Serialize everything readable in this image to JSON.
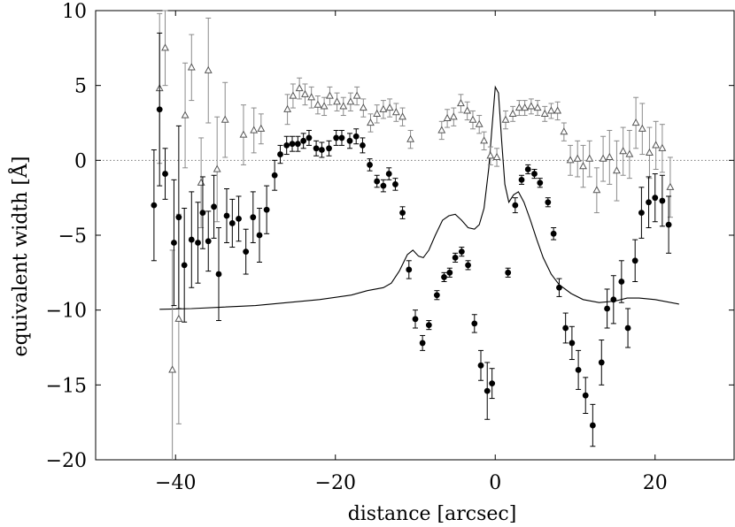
{
  "chart_data": {
    "type": "scatter",
    "title": "",
    "xlabel": "distance [arcsec]",
    "ylabel": "equivalent width [Å]",
    "xlim": [
      -50,
      30
    ],
    "ylim": [
      -20,
      10
    ],
    "xticks": [
      -40,
      -20,
      0,
      20
    ],
    "yticks": [
      -20,
      -15,
      -10,
      -5,
      0,
      5,
      10
    ],
    "xtick_labels": [
      "−40",
      "−20",
      "0",
      "20"
    ],
    "ytick_labels": [
      "−20",
      "−15",
      "−10",
      "−5",
      "0",
      "5",
      "10"
    ],
    "grid": false,
    "legend": "none",
    "reference_line": {
      "y": 0,
      "style": "dotted",
      "color": "#777777"
    },
    "series": [
      {
        "marker": "filled-circle",
        "color": "#000000",
        "points": [
          {
            "x": -42.7,
            "y": -3.0,
            "err": 3.7
          },
          {
            "x": -42.0,
            "y": 3.4,
            "err": 5.1
          },
          {
            "x": -41.3,
            "y": -0.9,
            "err": 1.7
          },
          {
            "x": -40.2,
            "y": -5.5,
            "err": 4.2
          },
          {
            "x": -39.6,
            "y": -3.8,
            "err": 6.1
          },
          {
            "x": -38.9,
            "y": -7.0,
            "err": 3.8
          },
          {
            "x": -38.0,
            "y": -5.3,
            "err": 3.2
          },
          {
            "x": -37.2,
            "y": -5.5,
            "err": 2.7
          },
          {
            "x": -36.6,
            "y": -3.5,
            "err": 2.4
          },
          {
            "x": -35.9,
            "y": -5.4,
            "err": 2.0
          },
          {
            "x": -35.2,
            "y": -3.1,
            "err": 2.1
          },
          {
            "x": -34.6,
            "y": -7.6,
            "err": 3.1
          },
          {
            "x": -33.6,
            "y": -3.7,
            "err": 1.8
          },
          {
            "x": -32.9,
            "y": -4.2,
            "err": 1.6
          },
          {
            "x": -32.1,
            "y": -3.9,
            "err": 1.5
          },
          {
            "x": -31.2,
            "y": -6.1,
            "err": 1.5
          },
          {
            "x": -30.3,
            "y": -3.8,
            "err": 1.7
          },
          {
            "x": -29.5,
            "y": -5.0,
            "err": 1.8
          },
          {
            "x": -28.6,
            "y": -3.3,
            "err": 1.6
          },
          {
            "x": -27.6,
            "y": -1.0,
            "err": 1.0
          },
          {
            "x": -26.9,
            "y": 0.4,
            "err": 0.6
          },
          {
            "x": -26.1,
            "y": 1.0,
            "err": 0.6
          },
          {
            "x": -25.4,
            "y": 1.1,
            "err": 0.5
          },
          {
            "x": -24.7,
            "y": 1.1,
            "err": 0.5
          },
          {
            "x": -24.0,
            "y": 1.3,
            "err": 0.5
          },
          {
            "x": -23.3,
            "y": 1.5,
            "err": 0.5
          },
          {
            "x": -22.4,
            "y": 0.8,
            "err": 0.5
          },
          {
            "x": -21.7,
            "y": 0.7,
            "err": 0.5
          },
          {
            "x": -20.8,
            "y": 0.8,
            "err": 0.5
          },
          {
            "x": -19.9,
            "y": 1.5,
            "err": 0.5
          },
          {
            "x": -19.2,
            "y": 1.5,
            "err": 0.5
          },
          {
            "x": -18.2,
            "y": 1.3,
            "err": 0.5
          },
          {
            "x": -17.4,
            "y": 1.6,
            "err": 0.5
          },
          {
            "x": -16.6,
            "y": 1.0,
            "err": 0.5
          },
          {
            "x": -15.7,
            "y": -0.3,
            "err": 0.4
          },
          {
            "x": -14.8,
            "y": -1.4,
            "err": 0.4
          },
          {
            "x": -14.0,
            "y": -1.7,
            "err": 0.4
          },
          {
            "x": -13.3,
            "y": -0.9,
            "err": 0.4
          },
          {
            "x": -12.5,
            "y": -1.6,
            "err": 0.4
          },
          {
            "x": -11.6,
            "y": -3.5,
            "err": 0.4
          },
          {
            "x": -10.8,
            "y": -7.3,
            "err": 0.6
          },
          {
            "x": -10.0,
            "y": -10.6,
            "err": 0.6
          },
          {
            "x": -9.1,
            "y": -12.2,
            "err": 0.5
          },
          {
            "x": -8.3,
            "y": -11.0,
            "err": 0.3
          },
          {
            "x": -7.3,
            "y": -9.0,
            "err": 0.3
          },
          {
            "x": -6.4,
            "y": -7.8,
            "err": 0.3
          },
          {
            "x": -5.7,
            "y": -7.5,
            "err": 0.3
          },
          {
            "x": -5.0,
            "y": -6.5,
            "err": 0.3
          },
          {
            "x": -4.2,
            "y": -6.1,
            "err": 0.3
          },
          {
            "x": -3.4,
            "y": -7.0,
            "err": 0.3
          },
          {
            "x": -2.6,
            "y": -10.9,
            "err": 0.6
          },
          {
            "x": -1.8,
            "y": -13.7,
            "err": 1.0
          },
          {
            "x": -1.0,
            "y": -15.4,
            "err": 1.9
          },
          {
            "x": -0.4,
            "y": -14.9,
            "err": 1.0
          },
          {
            "x": 1.6,
            "y": -7.5,
            "err": 0.3
          },
          {
            "x": 2.5,
            "y": -3.0,
            "err": 0.5
          },
          {
            "x": 3.3,
            "y": -1.3,
            "err": 0.3
          },
          {
            "x": 4.1,
            "y": -0.6,
            "err": 0.3
          },
          {
            "x": 4.9,
            "y": -0.9,
            "err": 0.3
          },
          {
            "x": 5.6,
            "y": -1.5,
            "err": 0.3
          },
          {
            "x": 6.6,
            "y": -2.8,
            "err": 0.3
          },
          {
            "x": 7.3,
            "y": -4.9,
            "err": 0.4
          },
          {
            "x": 8.0,
            "y": -8.5,
            "err": 0.6
          },
          {
            "x": 8.8,
            "y": -11.2,
            "err": 1.0
          },
          {
            "x": 9.6,
            "y": -12.2,
            "err": 1.1
          },
          {
            "x": 10.4,
            "y": -14.0,
            "err": 1.3
          },
          {
            "x": 11.3,
            "y": -15.7,
            "err": 1.2
          },
          {
            "x": 12.2,
            "y": -17.7,
            "err": 1.4
          },
          {
            "x": 13.3,
            "y": -13.5,
            "err": 1.5
          },
          {
            "x": 14.0,
            "y": -9.9,
            "err": 1.3
          },
          {
            "x": 14.8,
            "y": -9.3,
            "err": 1.6
          },
          {
            "x": 15.8,
            "y": -8.1,
            "err": 1.4
          },
          {
            "x": 16.6,
            "y": -11.2,
            "err": 1.3
          },
          {
            "x": 17.5,
            "y": -6.7,
            "err": 1.4
          },
          {
            "x": 18.3,
            "y": -3.5,
            "err": 1.7
          },
          {
            "x": 19.2,
            "y": -2.8,
            "err": 1.7
          },
          {
            "x": 20.0,
            "y": -2.5,
            "err": 1.6
          },
          {
            "x": 20.9,
            "y": -2.7,
            "err": 1.7
          },
          {
            "x": 21.7,
            "y": -4.3,
            "err": 1.9
          }
        ]
      },
      {
        "marker": "open-triangle",
        "color": "#555555",
        "points": [
          {
            "x": -42.0,
            "y": 4.8,
            "err": 5.0
          },
          {
            "x": -41.3,
            "y": 7.5,
            "err": 2.5
          },
          {
            "x": -40.4,
            "y": -14.0,
            "err": 8.0
          },
          {
            "x": -39.6,
            "y": -10.6,
            "err": 7.0
          },
          {
            "x": -38.8,
            "y": 3.0,
            "err": 3.5
          },
          {
            "x": -38.0,
            "y": 6.2,
            "err": 2.2
          },
          {
            "x": -36.8,
            "y": -1.5,
            "err": 3.0
          },
          {
            "x": -35.9,
            "y": 6.0,
            "err": 3.5
          },
          {
            "x": -34.8,
            "y": -0.6,
            "err": 3.5
          },
          {
            "x": -33.8,
            "y": 2.7,
            "err": 2.5
          },
          {
            "x": -31.5,
            "y": 1.7,
            "err": 2.0
          },
          {
            "x": -30.2,
            "y": 2.0,
            "err": 1.5
          },
          {
            "x": -29.3,
            "y": 2.1,
            "err": 1.0
          },
          {
            "x": -26.0,
            "y": 3.4,
            "err": 1.0
          },
          {
            "x": -25.3,
            "y": 4.3,
            "err": 0.8
          },
          {
            "x": -24.5,
            "y": 4.8,
            "err": 0.7
          },
          {
            "x": -23.8,
            "y": 4.4,
            "err": 0.7
          },
          {
            "x": -23.0,
            "y": 4.2,
            "err": 0.7
          },
          {
            "x": -22.2,
            "y": 3.7,
            "err": 0.6
          },
          {
            "x": -21.4,
            "y": 3.6,
            "err": 0.6
          },
          {
            "x": -20.7,
            "y": 4.3,
            "err": 0.6
          },
          {
            "x": -19.8,
            "y": 3.9,
            "err": 0.6
          },
          {
            "x": -19.0,
            "y": 3.6,
            "err": 0.6
          },
          {
            "x": -18.1,
            "y": 3.9,
            "err": 0.6
          },
          {
            "x": -17.3,
            "y": 4.3,
            "err": 0.6
          },
          {
            "x": -16.5,
            "y": 3.5,
            "err": 0.6
          },
          {
            "x": -15.6,
            "y": 2.5,
            "err": 0.6
          },
          {
            "x": -14.8,
            "y": 3.1,
            "err": 0.6
          },
          {
            "x": -14.0,
            "y": 3.4,
            "err": 0.6
          },
          {
            "x": -13.2,
            "y": 3.5,
            "err": 0.6
          },
          {
            "x": -12.4,
            "y": 3.2,
            "err": 0.6
          },
          {
            "x": -11.6,
            "y": 2.9,
            "err": 0.6
          },
          {
            "x": -10.6,
            "y": 1.4,
            "err": 0.6
          },
          {
            "x": -6.7,
            "y": 2.0,
            "err": 0.6
          },
          {
            "x": -6.0,
            "y": 2.8,
            "err": 0.6
          },
          {
            "x": -5.2,
            "y": 2.9,
            "err": 0.6
          },
          {
            "x": -4.3,
            "y": 3.8,
            "err": 0.6
          },
          {
            "x": -3.5,
            "y": 3.3,
            "err": 0.6
          },
          {
            "x": -2.8,
            "y": 2.7,
            "err": 0.6
          },
          {
            "x": -2.0,
            "y": 2.4,
            "err": 0.6
          },
          {
            "x": -1.4,
            "y": 1.3,
            "err": 0.6
          },
          {
            "x": -0.6,
            "y": 0.3,
            "err": 0.6
          },
          {
            "x": 0.2,
            "y": 0.2,
            "err": 0.6
          },
          {
            "x": 1.3,
            "y": 2.7,
            "err": 0.6
          },
          {
            "x": 2.2,
            "y": 3.1,
            "err": 0.5
          },
          {
            "x": 3.0,
            "y": 3.5,
            "err": 0.5
          },
          {
            "x": 3.7,
            "y": 3.5,
            "err": 0.5
          },
          {
            "x": 4.5,
            "y": 3.6,
            "err": 0.5
          },
          {
            "x": 5.3,
            "y": 3.5,
            "err": 0.5
          },
          {
            "x": 6.2,
            "y": 3.1,
            "err": 0.5
          },
          {
            "x": 7.0,
            "y": 3.3,
            "err": 0.5
          },
          {
            "x": 7.8,
            "y": 3.3,
            "err": 0.6
          },
          {
            "x": 8.6,
            "y": 1.9,
            "err": 0.6
          },
          {
            "x": 9.4,
            "y": 0.0,
            "err": 1.0
          },
          {
            "x": 10.3,
            "y": 0.1,
            "err": 1.2
          },
          {
            "x": 11.0,
            "y": -0.4,
            "err": 1.4
          },
          {
            "x": 11.8,
            "y": 0.1,
            "err": 1.2
          },
          {
            "x": 12.7,
            "y": -2.0,
            "err": 1.5
          },
          {
            "x": 13.5,
            "y": 0.1,
            "err": 1.5
          },
          {
            "x": 14.3,
            "y": 0.2,
            "err": 1.8
          },
          {
            "x": 15.2,
            "y": -0.7,
            "err": 2.0
          },
          {
            "x": 16.0,
            "y": 0.6,
            "err": 1.6
          },
          {
            "x": 16.8,
            "y": 0.4,
            "err": 1.6
          },
          {
            "x": 17.6,
            "y": 2.5,
            "err": 1.7
          },
          {
            "x": 18.4,
            "y": 2.1,
            "err": 1.7
          },
          {
            "x": 19.3,
            "y": 0.5,
            "err": 1.7
          },
          {
            "x": 20.1,
            "y": 1.0,
            "err": 1.6
          },
          {
            "x": 20.9,
            "y": 0.8,
            "err": 1.6
          },
          {
            "x": 21.9,
            "y": -1.8,
            "err": 2.0
          }
        ]
      },
      {
        "marker": "none",
        "style": "solid-line",
        "color": "#000000",
        "points": [
          {
            "x": -42.0,
            "y": -9.95
          },
          {
            "x": -38.0,
            "y": -9.9
          },
          {
            "x": -34.0,
            "y": -9.8
          },
          {
            "x": -30.0,
            "y": -9.7
          },
          {
            "x": -26.0,
            "y": -9.5
          },
          {
            "x": -22.0,
            "y": -9.3
          },
          {
            "x": -18.0,
            "y": -9.0
          },
          {
            "x": -16.0,
            "y": -8.7
          },
          {
            "x": -14.0,
            "y": -8.5
          },
          {
            "x": -13.0,
            "y": -8.2
          },
          {
            "x": -12.0,
            "y": -7.4
          },
          {
            "x": -11.0,
            "y": -6.3
          },
          {
            "x": -10.3,
            "y": -6.0
          },
          {
            "x": -9.6,
            "y": -6.4
          },
          {
            "x": -9.0,
            "y": -6.5
          },
          {
            "x": -8.3,
            "y": -6.0
          },
          {
            "x": -7.5,
            "y": -5.0
          },
          {
            "x": -6.6,
            "y": -4.0
          },
          {
            "x": -5.8,
            "y": -3.7
          },
          {
            "x": -5.0,
            "y": -3.6
          },
          {
            "x": -4.2,
            "y": -4.0
          },
          {
            "x": -3.4,
            "y": -4.5
          },
          {
            "x": -2.6,
            "y": -4.6
          },
          {
            "x": -2.0,
            "y": -4.3
          },
          {
            "x": -1.4,
            "y": -3.2
          },
          {
            "x": -0.8,
            "y": -0.5
          },
          {
            "x": -0.4,
            "y": 2.2
          },
          {
            "x": 0.0,
            "y": 4.9
          },
          {
            "x": 0.4,
            "y": 4.5
          },
          {
            "x": 0.8,
            "y": 1.3
          },
          {
            "x": 1.2,
            "y": -1.6
          },
          {
            "x": 1.7,
            "y": -2.8
          },
          {
            "x": 2.3,
            "y": -2.3
          },
          {
            "x": 2.9,
            "y": -2.1
          },
          {
            "x": 3.6,
            "y": -2.8
          },
          {
            "x": 4.4,
            "y": -4.0
          },
          {
            "x": 5.2,
            "y": -5.3
          },
          {
            "x": 6.0,
            "y": -6.5
          },
          {
            "x": 7.0,
            "y": -7.6
          },
          {
            "x": 8.0,
            "y": -8.3
          },
          {
            "x": 9.5,
            "y": -8.9
          },
          {
            "x": 11.0,
            "y": -9.3
          },
          {
            "x": 13.0,
            "y": -9.5
          },
          {
            "x": 15.0,
            "y": -9.4
          },
          {
            "x": 16.5,
            "y": -9.2
          },
          {
            "x": 18.0,
            "y": -9.2
          },
          {
            "x": 20.0,
            "y": -9.3
          },
          {
            "x": 23.0,
            "y": -9.6
          }
        ]
      }
    ]
  }
}
